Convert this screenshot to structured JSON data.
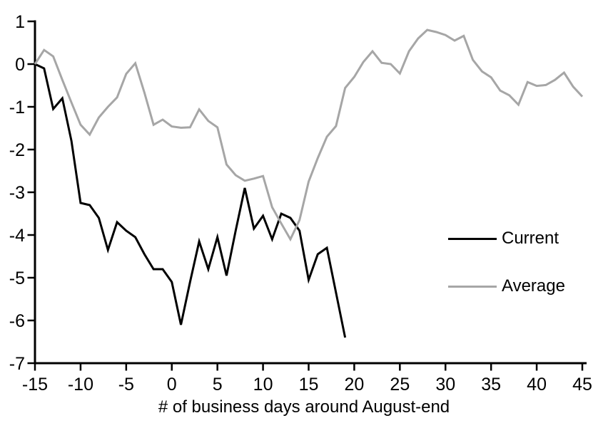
{
  "chart_data": {
    "type": "line",
    "title": "",
    "xlabel": "# of business days around August-end",
    "ylabel": "",
    "xlim": [
      -15,
      45
    ],
    "ylim": [
      -7,
      1
    ],
    "grid": false,
    "x_ticks": [
      -15,
      -10,
      -5,
      0,
      5,
      10,
      15,
      20,
      25,
      30,
      35,
      40,
      45
    ],
    "y_ticks": [
      1,
      0,
      -1,
      -2,
      -3,
      -4,
      -5,
      -6,
      -7
    ],
    "legend_position": "right-middle",
    "series": [
      {
        "name": "Current",
        "color": "#000000",
        "x": [
          -15,
          -14,
          -13,
          -12,
          -11,
          -10,
          -9,
          -8,
          -7,
          -6,
          -5,
          -4,
          -3,
          -2,
          -1,
          0,
          1,
          2,
          3,
          4,
          5,
          6,
          7,
          8,
          9,
          10,
          11,
          12,
          13,
          14,
          15,
          16,
          17,
          18,
          19
        ],
        "values": [
          0,
          -0.1,
          -1.05,
          -0.8,
          -1.8,
          -3.25,
          -3.3,
          -3.6,
          -4.35,
          -3.7,
          -3.9,
          -4.05,
          -4.45,
          -4.8,
          -4.8,
          -5.1,
          -6.1,
          -5.1,
          -4.15,
          -4.8,
          -4.05,
          -4.95,
          -3.9,
          -2.9,
          -3.85,
          -3.55,
          -4.1,
          -3.5,
          -3.6,
          -3.9,
          -5.05,
          -4.45,
          -4.3,
          -5.35,
          -6.4
        ]
      },
      {
        "name": "Average",
        "color": "#a6a6a6",
        "x": [
          -15,
          -14,
          -13,
          -12,
          -11,
          -10,
          -9,
          -8,
          -7,
          -6,
          -5,
          -4,
          -3,
          -2,
          -1,
          0,
          1,
          2,
          3,
          4,
          5,
          6,
          7,
          8,
          9,
          10,
          11,
          12,
          13,
          14,
          15,
          16,
          17,
          18,
          19,
          20,
          21,
          22,
          23,
          24,
          25,
          26,
          27,
          28,
          29,
          30,
          31,
          32,
          33,
          34,
          35,
          36,
          37,
          38,
          39,
          40,
          41,
          42,
          43,
          44,
          45
        ],
        "values": [
          0,
          0.33,
          0.18,
          -0.37,
          -0.9,
          -1.42,
          -1.65,
          -1.25,
          -1.0,
          -0.78,
          -0.23,
          0.02,
          -0.67,
          -1.42,
          -1.3,
          -1.46,
          -1.49,
          -1.48,
          -1.06,
          -1.33,
          -1.48,
          -2.35,
          -2.6,
          -2.73,
          -2.68,
          -2.62,
          -3.35,
          -3.73,
          -4.1,
          -3.65,
          -2.75,
          -2.2,
          -1.7,
          -1.45,
          -0.56,
          -0.3,
          0.05,
          0.3,
          0.03,
          0.0,
          -0.22,
          0.3,
          0.6,
          0.8,
          0.75,
          0.68,
          0.55,
          0.66,
          0.1,
          -0.17,
          -0.31,
          -0.62,
          -0.73,
          -0.95,
          -0.42,
          -0.51,
          -0.49,
          -0.37,
          -0.2,
          -0.53,
          -0.76
        ]
      }
    ]
  },
  "colors": {
    "background": "#ffffff",
    "axis": "#000000",
    "current": "#000000",
    "average": "#a6a6a6"
  }
}
